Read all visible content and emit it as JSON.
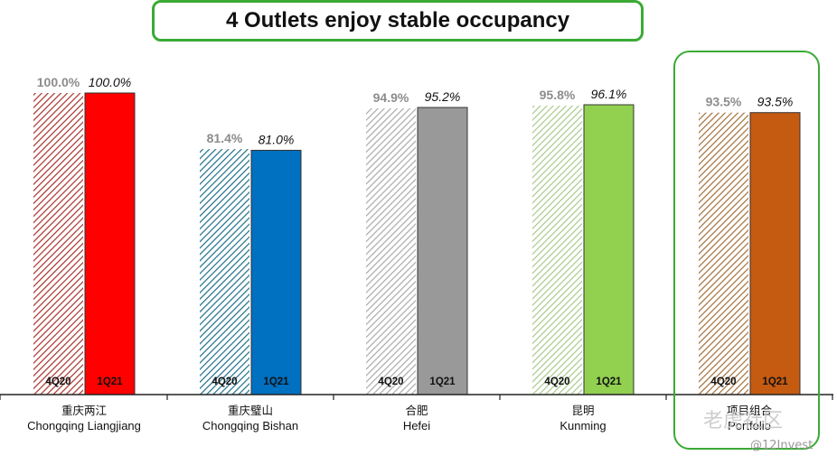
{
  "title": "4 Outlets enjoy stable occupancy",
  "watermark": {
    "text1": "老虎社区",
    "text2": "@12Invest"
  },
  "chart_data": {
    "type": "bar",
    "ylim": [
      0,
      100
    ],
    "grid": false,
    "legend": "none",
    "groups": [
      {
        "name_zh": "重庆两江",
        "name_en": "Chongqing Liangjiang",
        "color": "#ff0000",
        "hatch_color": "#a8322d",
        "bars": [
          {
            "period": "4Q20",
            "value": 100.0,
            "label": "100.0%"
          },
          {
            "period": "1Q21",
            "value": 100.0,
            "label": "100.0%"
          }
        ]
      },
      {
        "name_zh": "重庆璧山",
        "name_en": "Chongqing Bishan",
        "color": "#0070c0",
        "hatch_color": "#1f6f8b",
        "bars": [
          {
            "period": "4Q20",
            "value": 81.4,
            "label": "81.4%"
          },
          {
            "period": "1Q21",
            "value": 81.0,
            "label": "81.0%"
          }
        ]
      },
      {
        "name_zh": "合肥",
        "name_en": "Hefei",
        "color": "#999999",
        "hatch_color": "#aaaaaa",
        "bars": [
          {
            "period": "4Q20",
            "value": 94.9,
            "label": "94.9%"
          },
          {
            "period": "1Q21",
            "value": 95.2,
            "label": "95.2%"
          }
        ]
      },
      {
        "name_zh": "昆明",
        "name_en": "Kunming",
        "color": "#92d050",
        "hatch_color": "#a9c98a",
        "bars": [
          {
            "period": "4Q20",
            "value": 95.8,
            "label": "95.8%"
          },
          {
            "period": "1Q21",
            "value": 96.1,
            "label": "96.1%"
          }
        ]
      },
      {
        "name_zh": "项目组合",
        "name_en": "Portfolio",
        "color": "#c55a11",
        "hatch_color": "#a0703a",
        "bars": [
          {
            "period": "4Q20",
            "value": 93.5,
            "label": "93.5%"
          },
          {
            "period": "1Q21",
            "value": 93.5,
            "label": "93.5%"
          }
        ]
      }
    ]
  }
}
